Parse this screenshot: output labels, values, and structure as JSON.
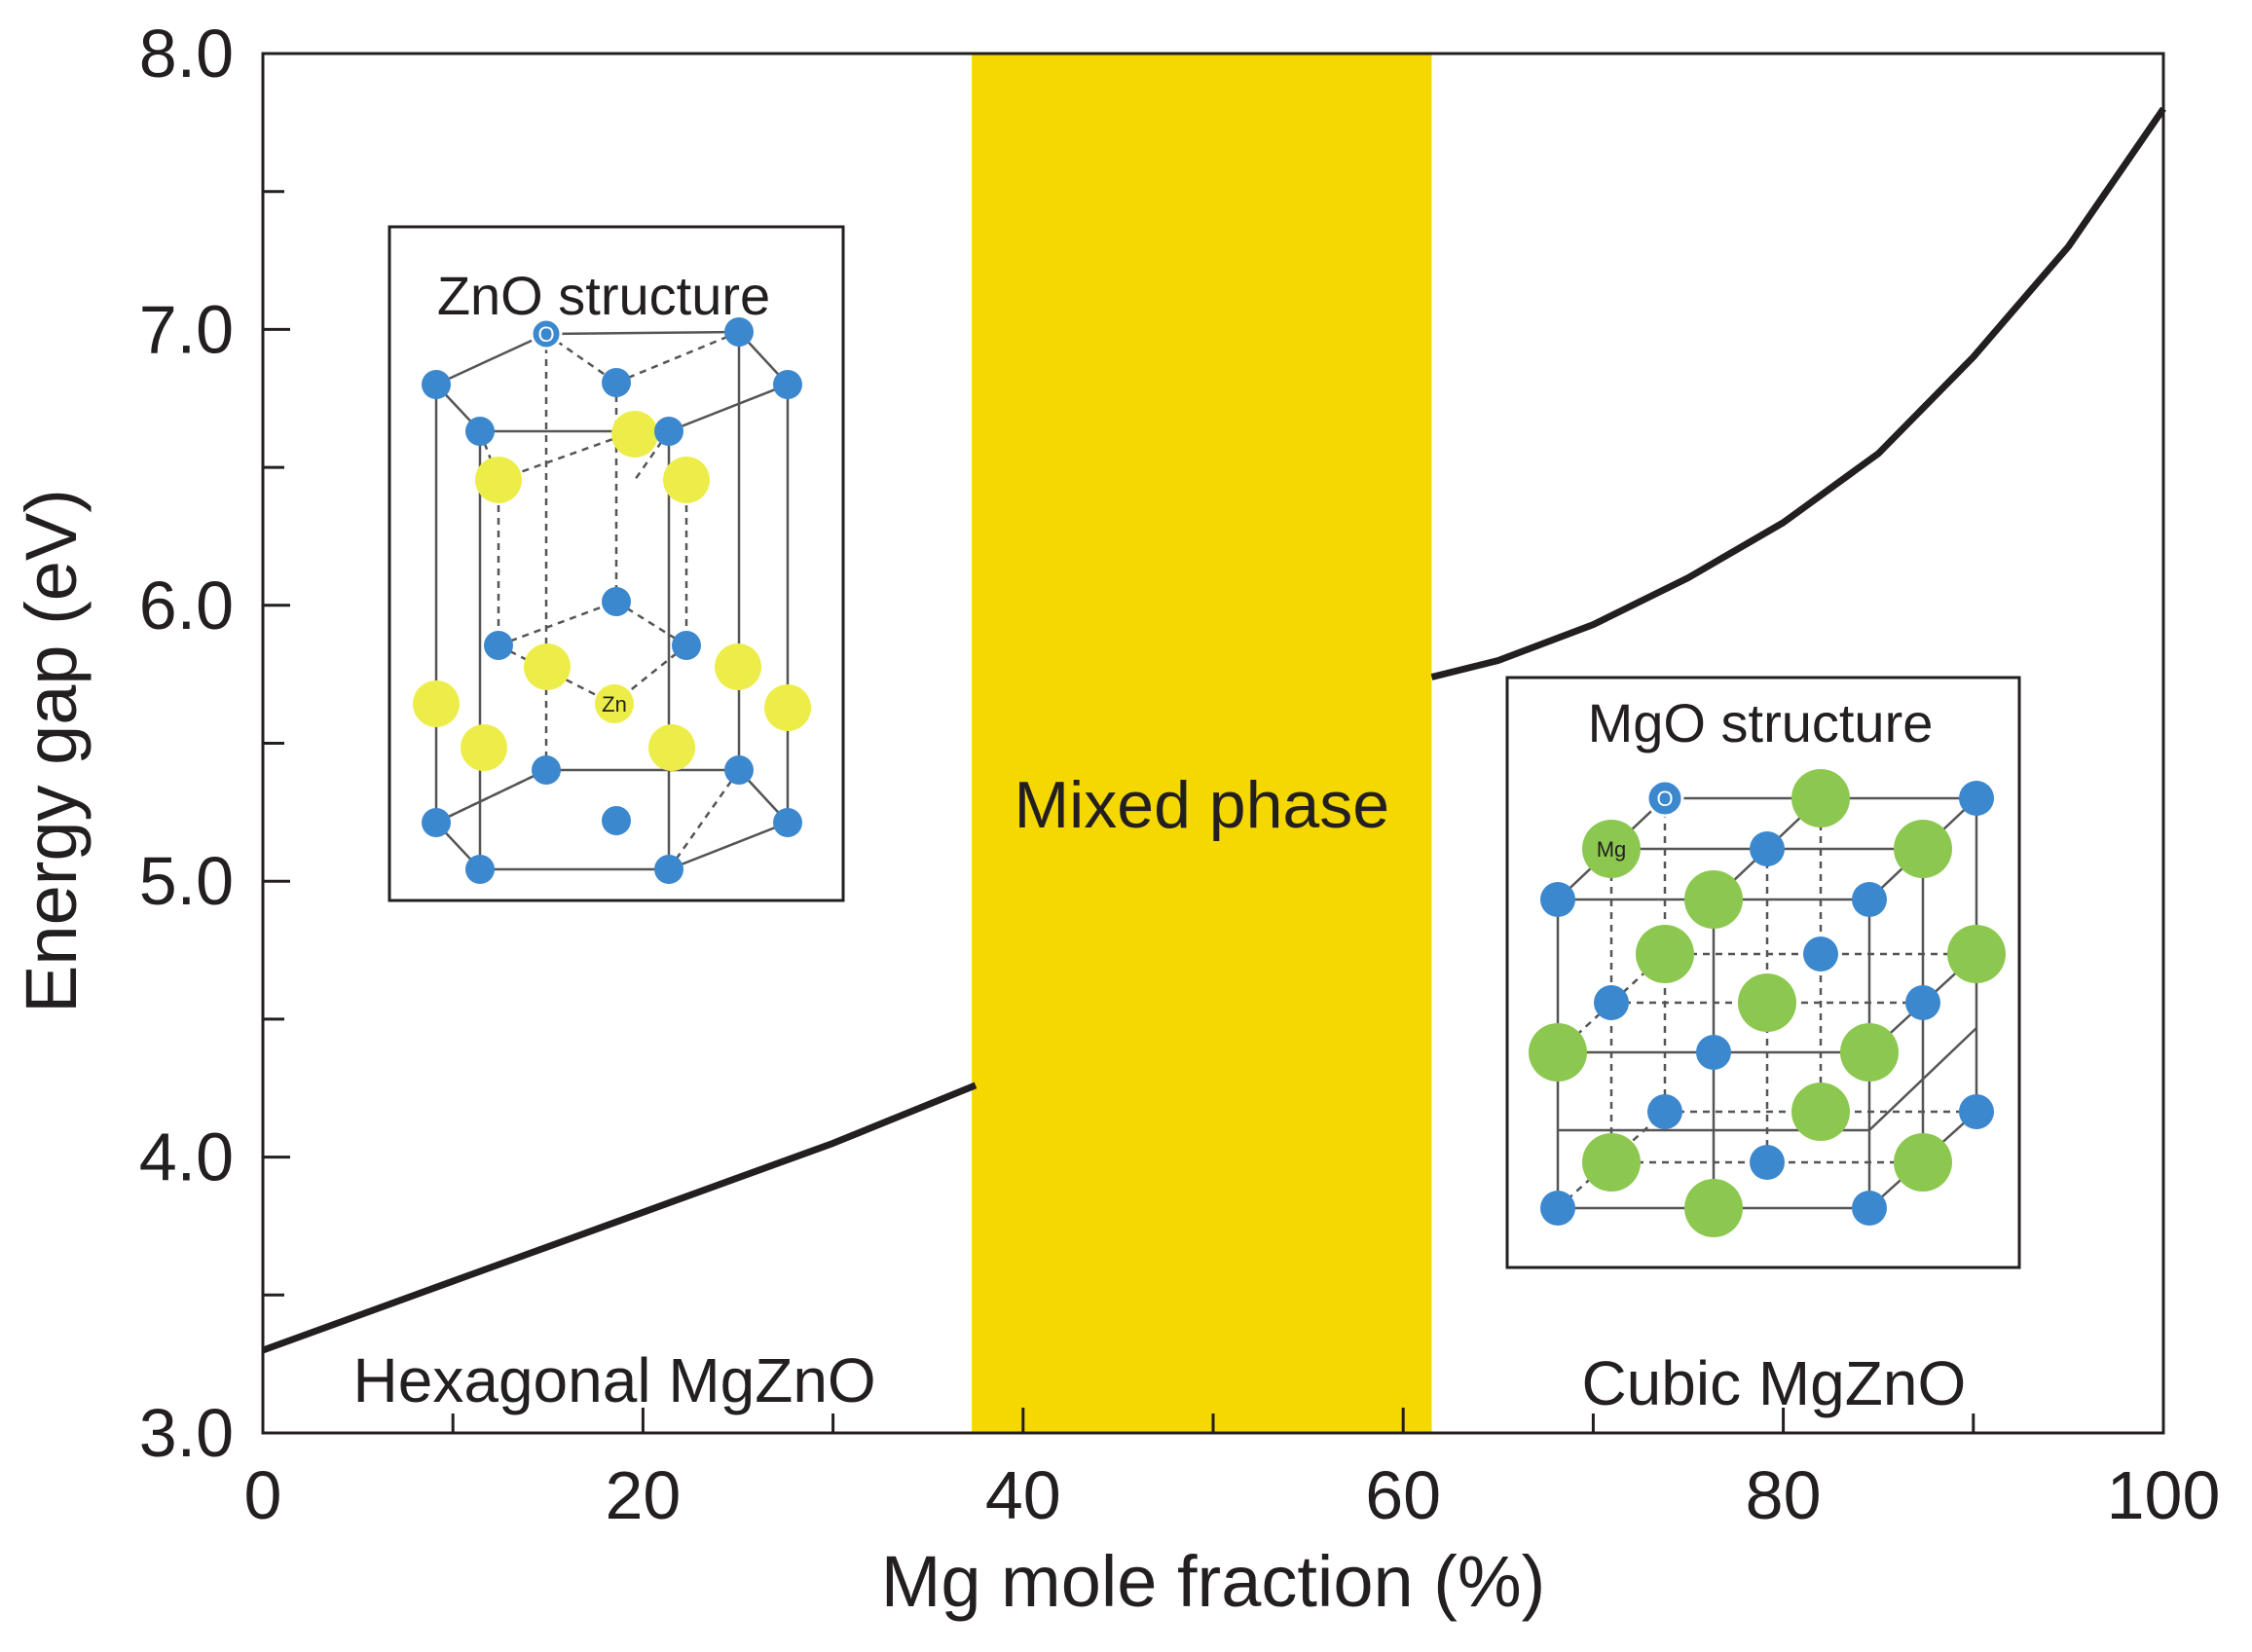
{
  "chart_data": {
    "type": "line",
    "xlabel": "Mg mole fraction (%)",
    "ylabel": "Energy gap (eV)",
    "xlim": [
      0,
      100
    ],
    "ylim": [
      3.0,
      8.0
    ],
    "x_ticks": [
      0,
      20,
      40,
      60,
      80,
      100
    ],
    "x_tick_labels": [
      "0",
      "20",
      "40",
      "60",
      "80",
      "100"
    ],
    "y_ticks": [
      3.0,
      4.0,
      5.0,
      6.0,
      7.0,
      8.0
    ],
    "y_tick_labels": [
      "3.0",
      "4.0",
      "5.0",
      "6.0",
      "7.0",
      "8.0"
    ],
    "grid": false,
    "series": [
      {
        "name": "Hexagonal MgZnO",
        "x": [
          0,
          10,
          20,
          30,
          37.5
        ],
        "y": [
          3.3,
          3.55,
          3.8,
          4.05,
          4.26
        ]
      },
      {
        "name": "Cubic MgZnO",
        "x": [
          61.5,
          65,
          70,
          75,
          80,
          85,
          90,
          95,
          100
        ],
        "y": [
          5.74,
          5.8,
          5.93,
          6.1,
          6.3,
          6.55,
          6.9,
          7.3,
          7.8
        ]
      }
    ],
    "shaded_region": {
      "label": "Mixed phase",
      "x_start": 37.3,
      "x_end": 61.5,
      "color": "#f5d800"
    },
    "region_labels": {
      "hexagonal": "Hexagonal MgZnO",
      "cubic": "Cubic MgZnO"
    },
    "insets": {
      "zno": {
        "title": "ZnO structure",
        "atom_o_label": "O",
        "atom_zn_label": "Zn"
      },
      "mgo": {
        "title": "MgO structure",
        "atom_o_label": "O",
        "atom_mg_label": "Mg"
      }
    }
  },
  "colors": {
    "line": "#231f20",
    "band": "#f5d800",
    "o_atom": "#3c88cf",
    "zn_atom": "#eded4a",
    "mg_atom": "#8cc850"
  }
}
